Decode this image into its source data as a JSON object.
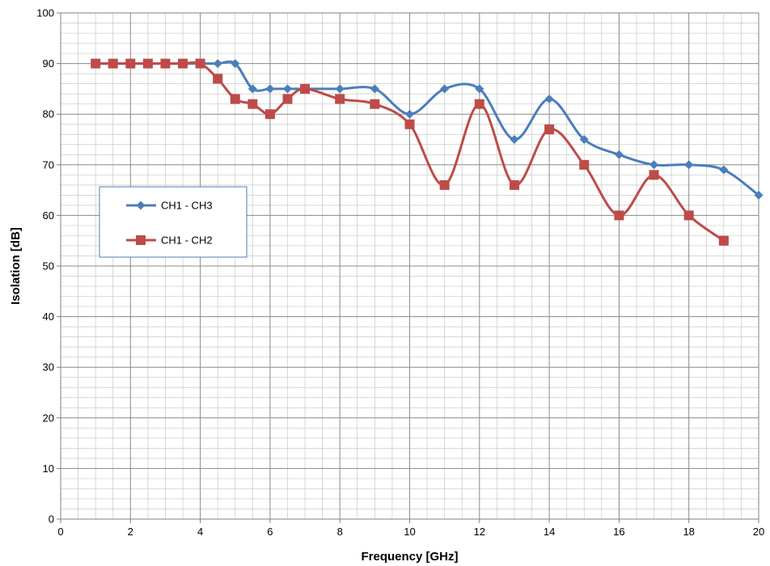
{
  "chart_data": {
    "type": "line",
    "title": "",
    "xlabel": "Frequency [GHz]",
    "ylabel": "Isolation [dB]",
    "xlim": [
      0,
      20
    ],
    "ylim": [
      0,
      100
    ],
    "xticks": [
      0,
      2,
      4,
      6,
      8,
      10,
      12,
      14,
      16,
      18,
      20
    ],
    "yticks": [
      0,
      10,
      20,
      30,
      40,
      50,
      60,
      70,
      80,
      90,
      100
    ],
    "grid": true,
    "minor_grid": true,
    "smoothed": true,
    "legend_position": "left-middle",
    "series": [
      {
        "name": "CH1 - CH3",
        "color": "#4a7ebb",
        "marker": "diamond",
        "x": [
          1,
          1.5,
          2,
          2.5,
          3,
          3.5,
          4,
          4.5,
          5,
          5.5,
          6,
          6.5,
          7,
          8,
          9,
          10,
          11,
          12,
          13,
          14,
          15,
          16,
          17,
          18,
          19,
          20
        ],
        "y": [
          90,
          90,
          90,
          90,
          90,
          90,
          90,
          90,
          90,
          85,
          85,
          85,
          85,
          85,
          85,
          80,
          85,
          85,
          75,
          83,
          75,
          72,
          70,
          70,
          69,
          64
        ]
      },
      {
        "name": "CH1 - CH2",
        "color": "#be4b48",
        "marker": "square",
        "x": [
          1,
          1.5,
          2,
          2.5,
          3,
          3.5,
          4,
          4.5,
          5,
          5.5,
          6,
          6.5,
          7,
          8,
          9,
          10,
          11,
          12,
          13,
          14,
          15,
          16,
          17,
          18,
          19
        ],
        "y": [
          90,
          90,
          90,
          90,
          90,
          90,
          90,
          87,
          83,
          82,
          80,
          83,
          85,
          83,
          82,
          78,
          66,
          82,
          66,
          77,
          70,
          60,
          68,
          60,
          55
        ]
      }
    ]
  }
}
